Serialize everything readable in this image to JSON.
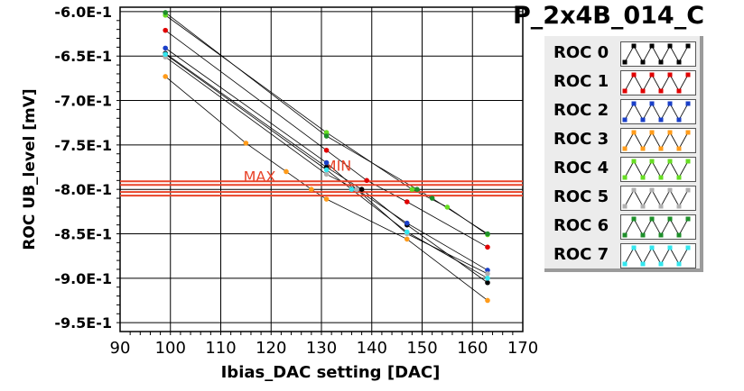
{
  "chart_data": {
    "type": "scatter",
    "title": "P_2x4B_014_C",
    "xlabel": "Ibias_DAC setting [DAC]",
    "ylabel": "ROC UB_level [mV]",
    "xlim": [
      90,
      170
    ],
    "ylim": [
      -0.96,
      -0.595
    ],
    "x_ticks": [
      "90",
      "100",
      "110",
      "120",
      "130",
      "140",
      "150",
      "160",
      "170"
    ],
    "y_ticks": [
      "-6.0E-1",
      "-6.5E-1",
      "-7.0E-1",
      "-7.5E-1",
      "-8.0E-1",
      "-8.5E-1",
      "-9.0E-1",
      "-9.5E-1"
    ],
    "grid": true,
    "legend_position": "right",
    "reference_lines": [
      {
        "label": "MAX",
        "y": -0.793,
        "color": "#e8442a"
      },
      {
        "label": "MIN",
        "y": -0.805,
        "color": "#e8442a"
      }
    ],
    "series": [
      {
        "name": "ROC 0",
        "color": "#000000",
        "points": [
          [
            99,
            -0.647
          ],
          [
            131,
            -0.775
          ],
          [
            138,
            -0.8
          ],
          [
            147,
            -0.84
          ],
          [
            163,
            -0.905
          ]
        ]
      },
      {
        "name": "ROC 1",
        "color": "#e00000",
        "points": [
          [
            99,
            -0.621
          ],
          [
            131,
            -0.756
          ],
          [
            139,
            -0.79
          ],
          [
            147,
            -0.814
          ],
          [
            163,
            -0.865
          ]
        ]
      },
      {
        "name": "ROC 2",
        "color": "#1a3fc8",
        "points": [
          [
            99,
            -0.641
          ],
          [
            131,
            -0.77
          ],
          [
            137,
            -0.8
          ],
          [
            147,
            -0.838
          ],
          [
            163,
            -0.891
          ]
        ]
      },
      {
        "name": "ROC 3",
        "color": "#ff9b1a",
        "points": [
          [
            99,
            -0.673
          ],
          [
            115,
            -0.748
          ],
          [
            123,
            -0.78
          ],
          [
            128,
            -0.8
          ],
          [
            131,
            -0.811
          ],
          [
            147,
            -0.856
          ],
          [
            163,
            -0.925
          ]
        ]
      },
      {
        "name": "ROC 4",
        "color": "#66dd22",
        "points": [
          [
            99,
            -0.604
          ],
          [
            131,
            -0.736
          ],
          [
            148,
            -0.8
          ],
          [
            155,
            -0.82
          ],
          [
            163,
            -0.851
          ]
        ]
      },
      {
        "name": "ROC 5",
        "color": "#b0b0b0",
        "points": [
          [
            99,
            -0.651
          ],
          [
            131,
            -0.783
          ],
          [
            137,
            -0.8
          ],
          [
            147,
            -0.85
          ],
          [
            163,
            -0.895
          ]
        ]
      },
      {
        "name": "ROC 6",
        "color": "#1e8f2a",
        "points": [
          [
            99,
            -0.601
          ],
          [
            131,
            -0.74
          ],
          [
            149,
            -0.8
          ],
          [
            152,
            -0.81
          ],
          [
            163,
            -0.85
          ]
        ]
      },
      {
        "name": "ROC 7",
        "color": "#33e6ee",
        "points": [
          [
            99,
            -0.648
          ],
          [
            131,
            -0.778
          ],
          [
            136,
            -0.8
          ],
          [
            147,
            -0.848
          ],
          [
            163,
            -0.9
          ]
        ]
      }
    ]
  }
}
